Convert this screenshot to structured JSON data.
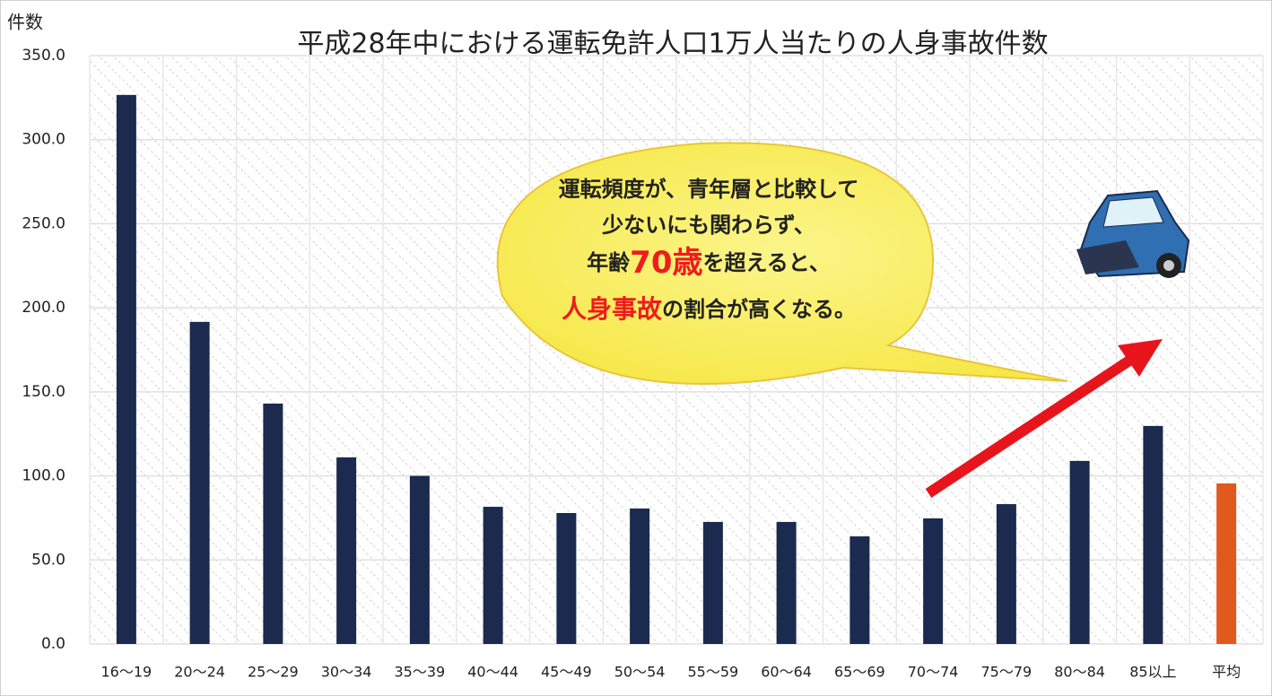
{
  "chart_data": {
    "type": "bar",
    "title": "平成28年中における運転免許人口1万人当たりの人身事故件数",
    "y_label": "件数",
    "categories": [
      "16〜19",
      "20〜24",
      "25〜29",
      "30〜34",
      "35〜39",
      "40〜44",
      "45〜49",
      "50〜54",
      "55〜59",
      "60〜64",
      "65〜69",
      "70〜74",
      "75〜79",
      "80〜84",
      "85以上",
      "平均"
    ],
    "values": [
      326.6,
      191.6,
      143.0,
      111.0,
      100.0,
      81.6,
      77.9,
      80.6,
      72.6,
      72.6,
      64.0,
      74.7,
      83.2,
      108.9,
      129.7,
      95.5
    ],
    "colors": [
      "#1b2a4e",
      "#1b2a4e",
      "#1b2a4e",
      "#1b2a4e",
      "#1b2a4e",
      "#1b2a4e",
      "#1b2a4e",
      "#1b2a4e",
      "#1b2a4e",
      "#1b2a4e",
      "#1b2a4e",
      "#1b2a4e",
      "#1b2a4e",
      "#1b2a4e",
      "#1b2a4e",
      "#e05a1f"
    ],
    "ylim": [
      0,
      350
    ],
    "yticks": [
      {
        "value": 0,
        "label": "0.0"
      },
      {
        "value": 50,
        "label": "50.0"
      },
      {
        "value": 100,
        "label": "100.0"
      },
      {
        "value": 150,
        "label": "150.0"
      },
      {
        "value": 200,
        "label": "200.0"
      },
      {
        "value": 250,
        "label": "250.0"
      },
      {
        "value": 300,
        "label": "300.0"
      },
      {
        "value": 350,
        "label": "350.0"
      }
    ],
    "grid": true,
    "callout": [
      [
        {
          "text": "運転頻度が、青年層と比較して",
          "color": "#222222"
        }
      ],
      [
        {
          "text": "少ないにも関わらず、",
          "color": "#222222"
        }
      ],
      [
        {
          "text": "年齢",
          "color": "#222222"
        },
        {
          "text": "70歳",
          "color": "#ee1c1c",
          "size": 34
        },
        {
          "text": "を超えると、",
          "color": "#222222"
        }
      ],
      [
        {
          "text": "人身事故",
          "color": "#ee1c1c",
          "size": 28
        },
        {
          "text": "の割合が高くなる。",
          "color": "#222222"
        }
      ]
    ]
  }
}
